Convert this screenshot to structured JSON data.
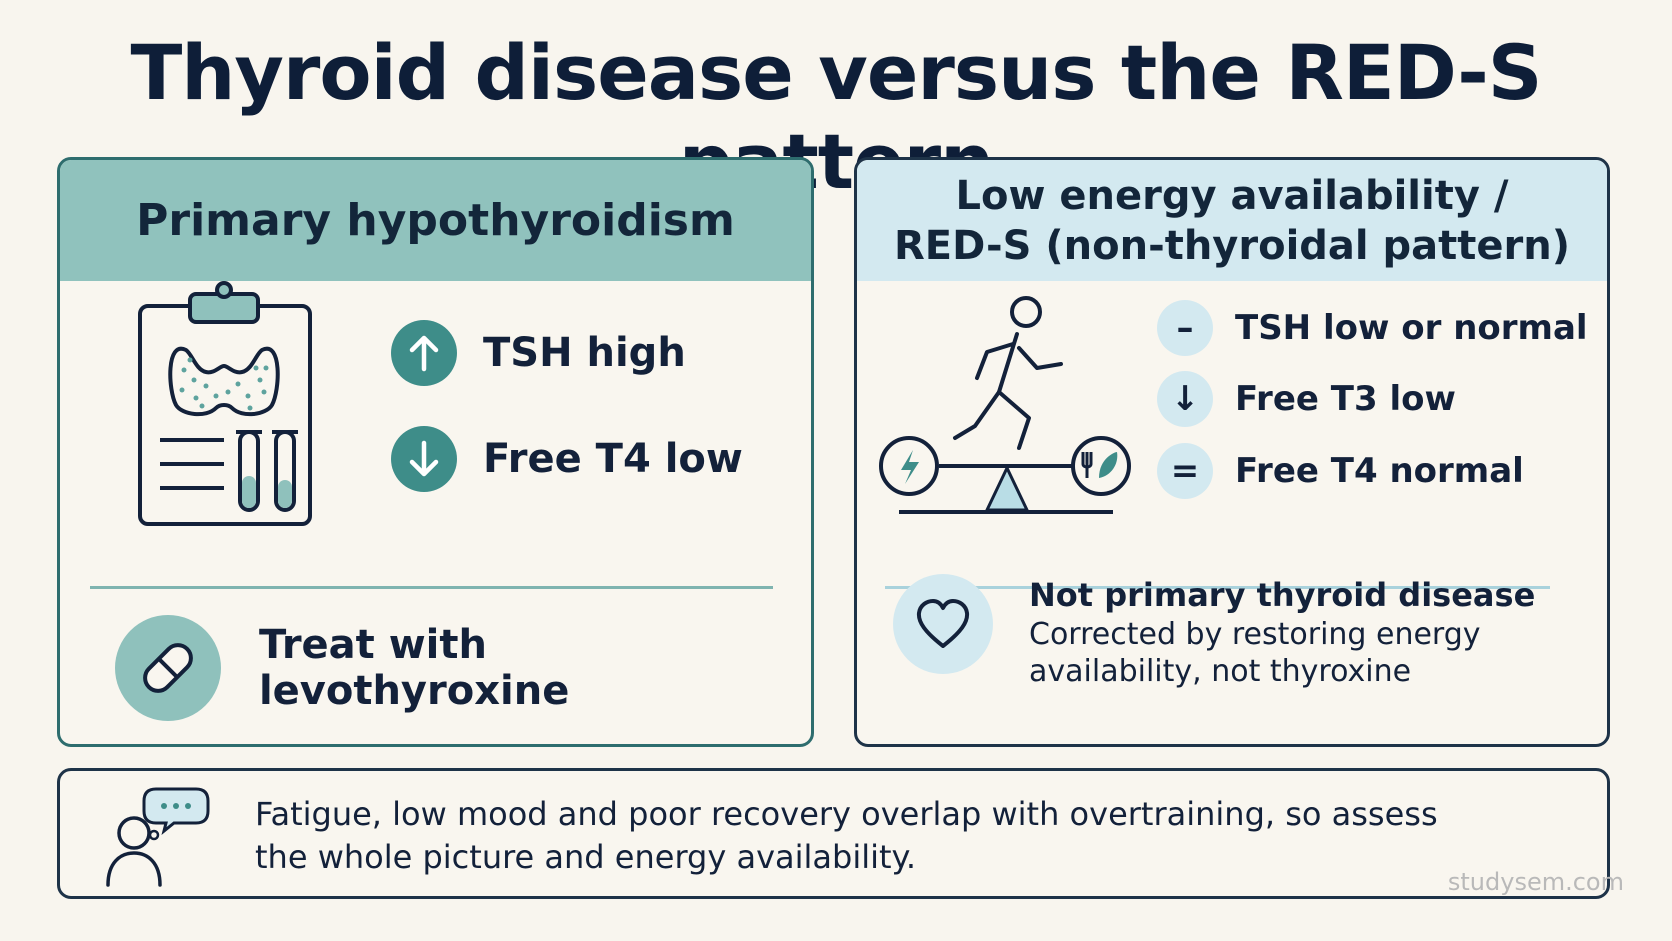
{
  "title": "Thyroid disease versus the RED-S pattern",
  "left_panel": {
    "heading": "Primary hypothyroidism",
    "items": [
      {
        "icon": "arrow-up-icon",
        "text": "TSH high"
      },
      {
        "icon": "arrow-down-icon",
        "text": "Free T4 low"
      }
    ],
    "footer": {
      "icon": "pill-icon",
      "text": "Treat with levothyroxine"
    }
  },
  "right_panel": {
    "heading_line1": "Low energy availability /",
    "heading_line2": "RED-S (non-thyroidal pattern)",
    "items": [
      {
        "symbol": "–",
        "text": "TSH low or normal"
      },
      {
        "symbol": "↓",
        "text": "Free T3 low"
      },
      {
        "symbol": "=",
        "text": "Free T4 normal"
      }
    ],
    "footer": {
      "icon": "heart-icon",
      "title": "Not primary thyroid disease",
      "body": "Corrected by restoring energy availability, not thyroxine"
    }
  },
  "note": {
    "icon": "person-thinking-icon",
    "text": "Fatigue, low mood and poor recovery overlap with overtraining, so assess the whole picture and energy availability."
  },
  "watermark": "studysem.com",
  "colors": {
    "teal_header": "#90c2bd",
    "teal_accent": "#3e8d89",
    "blue_header": "#d3e9f0",
    "ink": "#13213a",
    "background": "#f8f5ee"
  }
}
